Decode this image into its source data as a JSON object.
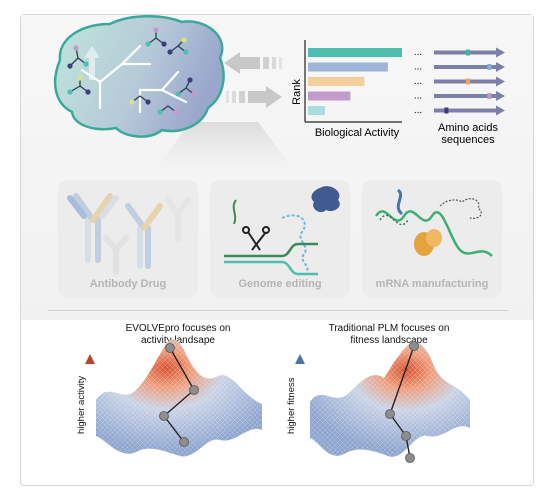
{
  "ranking": {
    "y_axis_label": "Rank",
    "x_axis_label": "Biological Activity",
    "bars": [
      {
        "value": 1.0,
        "color": "#4dbfb0"
      },
      {
        "value": 0.85,
        "color": "#9fb4d6"
      },
      {
        "value": 0.6,
        "color": "#f3cf9c"
      },
      {
        "value": 0.45,
        "color": "#c39acb"
      },
      {
        "value": 0.18,
        "color": "#a9dcdc"
      }
    ],
    "ellipsis": "..."
  },
  "sequences": {
    "label_line1": "Amino acids",
    "label_line2": "sequences",
    "rows": [
      {
        "mark_color": "#3ab7a7",
        "mark_pos": 0.55
      },
      {
        "mark_color": "#8ab0d8",
        "mark_pos": 0.92
      },
      {
        "mark_color": "#f1a55c",
        "mark_pos": 0.55
      },
      {
        "mark_color": "#c39acb",
        "mark_pos": 0.92
      },
      {
        "mark_color": "#3d3f78",
        "mark_pos": 0.18
      }
    ],
    "arrow_color": "#7c80a6"
  },
  "applications": [
    {
      "label": "Antibody Drug",
      "icon": "antibody-icon"
    },
    {
      "label": "Genome editing",
      "icon": "crispr-icon"
    },
    {
      "label": "mRNA manufacturing",
      "icon": "mrna-icon"
    }
  ],
  "landscapes": [
    {
      "caption_line1": "EVOLVEpro focuses on",
      "caption_line2": "activity landsape",
      "axis_label": "higher activity",
      "axis_color": "#b8432a"
    },
    {
      "caption_line1": "Traditional PLM focuses on",
      "caption_line2": "fitness landscape",
      "axis_label": "higher fitness",
      "axis_color": "#4a73a8"
    }
  ],
  "colors": {
    "brain_border": "#3aa99a",
    "teal": "#4dbfb0",
    "landscape_high": "#d5512f",
    "landscape_low": "#9fb4d6"
  }
}
